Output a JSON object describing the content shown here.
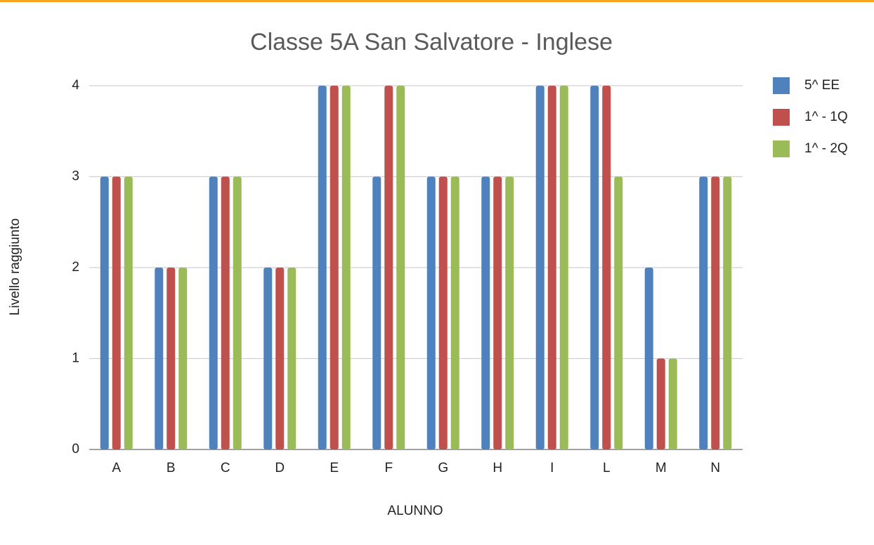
{
  "chart_data": {
    "type": "bar",
    "title": "Classe 5A San Salvatore - Inglese",
    "x_label": "ALUNNO",
    "y_label": "Livello raggiunto",
    "categories": [
      "A",
      "B",
      "C",
      "D",
      "E",
      "F",
      "G",
      "H",
      "I",
      "L",
      "M",
      "N"
    ],
    "series": [
      {
        "name": "5^ EE",
        "color": "#4f81bd",
        "values": [
          3,
          2,
          3,
          2,
          4,
          3,
          3,
          3,
          4,
          4,
          2,
          3
        ]
      },
      {
        "name": "1^ - 1Q",
        "color": "#c0504d",
        "values": [
          3,
          2,
          3,
          2,
          4,
          4,
          3,
          3,
          4,
          4,
          1,
          3
        ]
      },
      {
        "name": "1^ - 2Q",
        "color": "#9bbb59",
        "values": [
          3,
          2,
          3,
          2,
          4,
          4,
          3,
          3,
          4,
          3,
          1,
          3
        ]
      }
    ],
    "ylim": [
      0,
      4
    ],
    "yticks": [
      0,
      1,
      2,
      3,
      4
    ],
    "grid": true,
    "legend": "right"
  }
}
